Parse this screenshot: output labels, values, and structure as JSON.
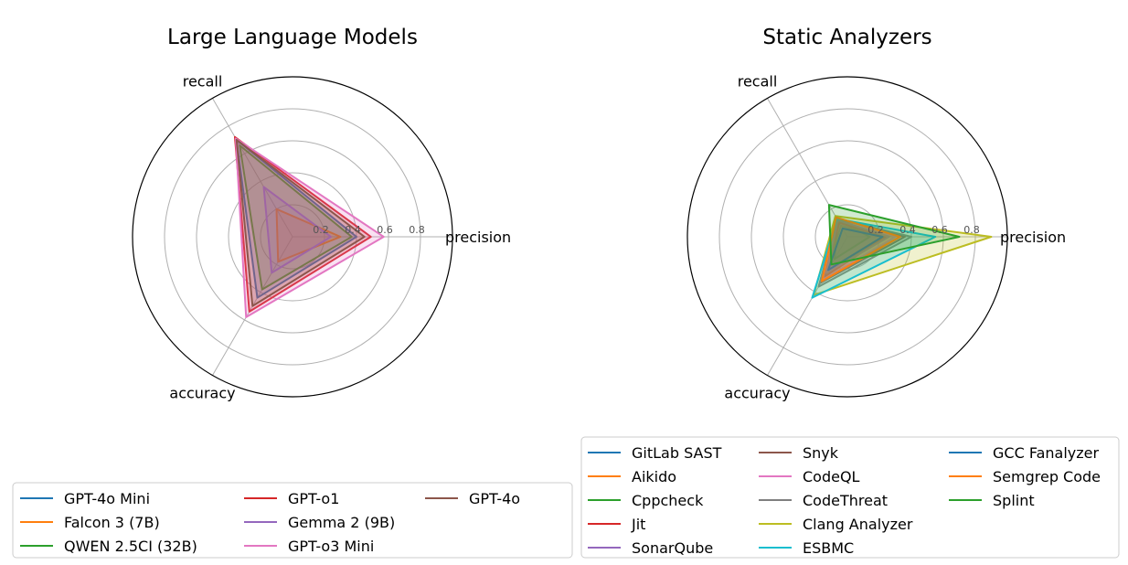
{
  "chart_data": [
    {
      "type": "radar",
      "title": "Large Language Models",
      "axes": [
        "precision",
        "recall",
        "accuracy"
      ],
      "rlim": [
        0,
        1
      ],
      "rticks": [
        "0.2",
        "0.4",
        "0.6",
        "0.8"
      ],
      "grid": true,
      "legend_position": "bottom",
      "series": [
        {
          "name": "GPT-4o Mini",
          "color": "#1f77b4",
          "values": [
            0.4,
            0.7,
            0.44
          ]
        },
        {
          "name": "Falcon 3 (7B)",
          "color": "#ff7f0e",
          "values": [
            0.3,
            0.2,
            0.18
          ]
        },
        {
          "name": "QWEN 2.5CI (32B)",
          "color": "#2ca02c",
          "values": [
            0.37,
            0.66,
            0.38
          ]
        },
        {
          "name": "GPT-o1",
          "color": "#d62728",
          "values": [
            0.49,
            0.72,
            0.54
          ]
        },
        {
          "name": "Gemma 2 (9B)",
          "color": "#9467bd",
          "values": [
            0.24,
            0.36,
            0.26
          ]
        },
        {
          "name": "GPT-o3 Mini",
          "color": "#e377c2",
          "values": [
            0.57,
            0.71,
            0.58
          ]
        },
        {
          "name": "GPT-4o",
          "color": "#8c564b",
          "values": [
            0.45,
            0.7,
            0.5
          ]
        }
      ]
    },
    {
      "type": "radar",
      "title": "Static Analyzers",
      "axes": [
        "precision",
        "recall",
        "accuracy"
      ],
      "rlim": [
        0,
        1
      ],
      "rticks": [
        "0.2",
        "0.4",
        "0.6",
        "0.8"
      ],
      "grid": true,
      "legend_position": "bottom",
      "series": [
        {
          "name": "GitLab SAST",
          "color": "#1f77b4",
          "values": [
            0.22,
            0.08,
            0.28
          ]
        },
        {
          "name": "Aikido",
          "color": "#ff7f0e",
          "values": [
            0.3,
            0.1,
            0.33
          ]
        },
        {
          "name": "Cppcheck",
          "color": "#2ca02c",
          "values": [
            0.14,
            0.12,
            0.16
          ]
        },
        {
          "name": "Jit",
          "color": "#d62728",
          "values": [
            0.24,
            0.1,
            0.29
          ]
        },
        {
          "name": "SonarQube",
          "color": "#9467bd",
          "values": [
            0.26,
            0.12,
            0.26
          ]
        },
        {
          "name": "Snyk",
          "color": "#8c564b",
          "values": [
            0.36,
            0.13,
            0.33
          ]
        },
        {
          "name": "CodeQL",
          "color": "#e377c2",
          "values": [
            0.3,
            0.14,
            0.31
          ]
        },
        {
          "name": "CodeThreat",
          "color": "#7f7f7f",
          "values": [
            0.4,
            0.13,
            0.36
          ]
        },
        {
          "name": "Clang Analyzer",
          "color": "#bcbd22",
          "values": [
            0.9,
            0.15,
            0.42
          ]
        },
        {
          "name": "ESBMC",
          "color": "#17becf",
          "values": [
            0.55,
            0.13,
            0.44
          ]
        },
        {
          "name": "GCC Fanalyzer",
          "color": "#1f77b4",
          "values": [
            0.22,
            0.06,
            0.24
          ]
        },
        {
          "name": "Semgrep Code",
          "color": "#ff7f0e",
          "values": [
            0.33,
            0.14,
            0.32
          ]
        },
        {
          "name": "Splint",
          "color": "#2ca02c",
          "values": [
            0.7,
            0.23,
            0.2
          ]
        }
      ]
    }
  ]
}
